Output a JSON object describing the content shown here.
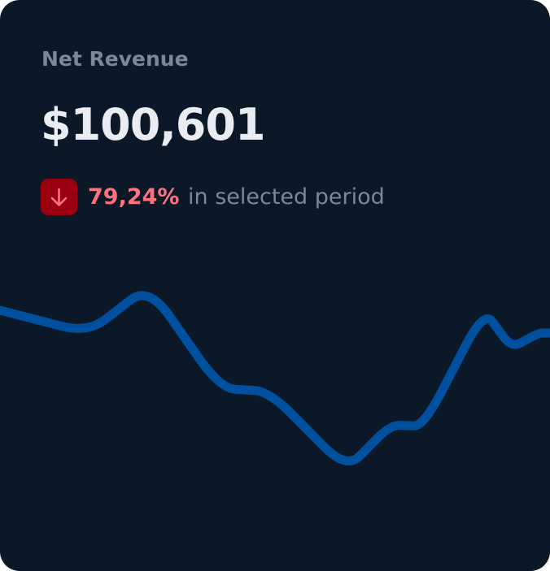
{
  "card": {
    "title": "Net Revenue",
    "value": "$100,601",
    "change": {
      "icon": "arrow-down-icon",
      "percent": "79,24%",
      "suffix": "in selected period",
      "direction": "down"
    }
  },
  "colors": {
    "background": "#0a1828",
    "line": "#0050a0",
    "negative": "#ff7380",
    "badge": "#9a0010"
  },
  "chart_data": {
    "type": "line",
    "x": [
      0,
      16,
      27,
      40,
      49,
      63,
      71,
      77,
      88,
      93,
      98,
      100
    ],
    "series": [
      {
        "values": [
          218,
          190,
          248,
          122,
          118,
          22,
          77,
          75,
          218,
          172,
          190,
          190
        ]
      }
    ],
    "ylim": [
      0,
      300
    ],
    "xlim": [
      0,
      100
    ],
    "grid": false,
    "axes": false
  }
}
